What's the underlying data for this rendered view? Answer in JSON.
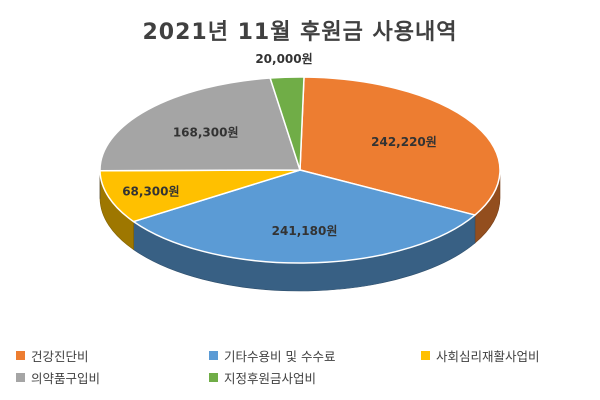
{
  "chart_data": {
    "type": "pie",
    "title": "2021년 11월 후원금 사용내역",
    "slices": [
      {
        "name": "건강진단비",
        "value": 242220,
        "label": "242,220원",
        "color": "#ED7D31"
      },
      {
        "name": "기타수용비 및 수수료",
        "value": 241180,
        "label": "241,180원",
        "color": "#5B9BD5"
      },
      {
        "name": "사회심리재활사업비",
        "value": 68300,
        "label": "68,300원",
        "color": "#FFC000"
      },
      {
        "name": "의약품구입비",
        "value": 168300,
        "label": "168,300원",
        "color": "#A5A5A5"
      },
      {
        "name": "지정후원금사업비",
        "value": 20000,
        "label": "20,000원",
        "color": "#70AD47"
      }
    ],
    "legend_position": "bottom"
  }
}
